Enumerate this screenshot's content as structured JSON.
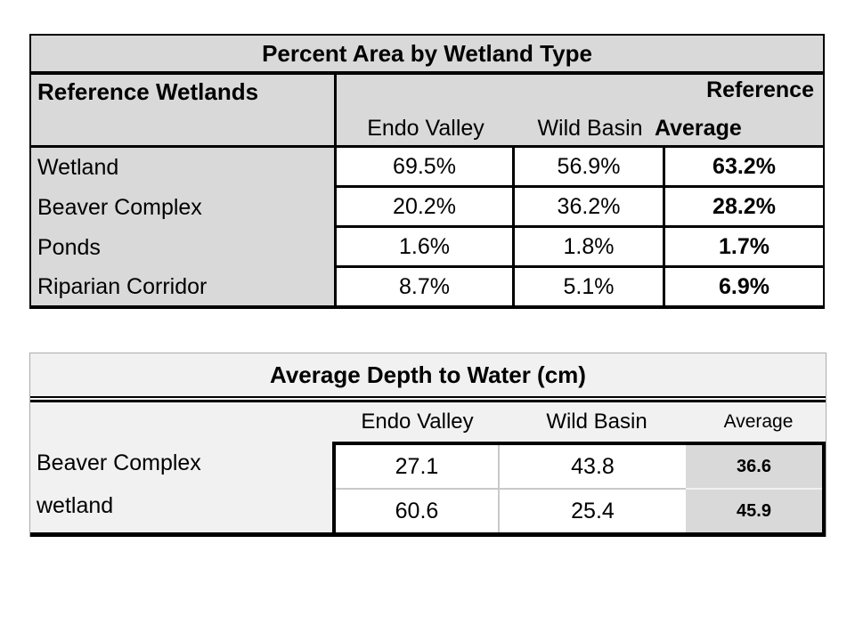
{
  "page": {
    "background": "#ffffff"
  },
  "table1": {
    "title": "Percent Area by Wetland Type",
    "corner_header": "Reference Wetlands",
    "site_columns": [
      "Endo Valley",
      "Wild Basin"
    ],
    "summary_column": {
      "line1": "Reference",
      "line2": "Average"
    },
    "rows": [
      {
        "label": "Wetland",
        "endo_valley": "69.5%",
        "wild_basin": "56.9%",
        "reference_average": "63.2%"
      },
      {
        "label": "Beaver Complex",
        "endo_valley": "20.2%",
        "wild_basin": "36.2%",
        "reference_average": "28.2%"
      },
      {
        "label": "Ponds",
        "endo_valley": "1.6%",
        "wild_basin": "1.8%",
        "reference_average": "1.7%"
      },
      {
        "label": "Riparian Corridor",
        "endo_valley": "8.7%",
        "wild_basin": "5.1%",
        "reference_average": "6.9%"
      }
    ],
    "colors": {
      "header_bg": "#d9d9d9",
      "cell_bg": "#ffffff",
      "border": "#000000"
    }
  },
  "table2": {
    "title": "Average Depth to Water (cm)",
    "columns": [
      "Endo Valley",
      "Wild Basin",
      "Average"
    ],
    "rows": [
      {
        "label": "Beaver Complex",
        "endo_valley": "27.1",
        "wild_basin": "43.8",
        "average": "36.6"
      },
      {
        "label": "wetland",
        "endo_valley": "60.6",
        "wild_basin": "25.4",
        "average": "45.9"
      }
    ],
    "colors": {
      "table_bg": "#f1f1f1",
      "average_col_bg": "#d9d9d9",
      "cell_bg": "#ffffff",
      "border": "#000000"
    }
  },
  "chart_data": [
    {
      "type": "table",
      "title": "Percent Area by Wetland Type",
      "columns": [
        "Reference Wetlands",
        "Endo Valley",
        "Wild Basin",
        "Reference Average"
      ],
      "rows": [
        [
          "Wetland",
          "69.5%",
          "56.9%",
          "63.2%"
        ],
        [
          "Beaver Complex",
          "20.2%",
          "36.2%",
          "28.2%"
        ],
        [
          "Ponds",
          "1.6%",
          "1.8%",
          "1.7%"
        ],
        [
          "Riparian Corridor",
          "8.7%",
          "5.1%",
          "6.9%"
        ]
      ]
    },
    {
      "type": "table",
      "title": "Average Depth to Water (cm)",
      "columns": [
        "",
        "Endo Valley",
        "Wild Basin",
        "Average"
      ],
      "rows": [
        [
          "Beaver Complex",
          "27.1",
          "43.8",
          "36.6"
        ],
        [
          "wetland",
          "60.6",
          "25.4",
          "45.9"
        ]
      ]
    }
  ]
}
